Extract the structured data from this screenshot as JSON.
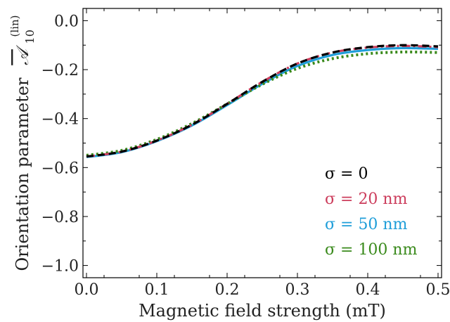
{
  "chart_data": {
    "type": "line",
    "xlabel": "Magnetic field strength (mT)",
    "ylabel": "Orientation parameter",
    "ylabel_symbol": "𝒜",
    "ylabel_sub": "10",
    "ylabel_sup": "(lin)",
    "xlim": [
      -0.005,
      0.505
    ],
    "ylim": [
      -1.05,
      0.05
    ],
    "xticks": [
      0.0,
      0.1,
      0.2,
      0.3,
      0.4,
      0.5
    ],
    "xtick_labels": [
      "0.0",
      "0.1",
      "0.2",
      "0.3",
      "0.4",
      "0.5"
    ],
    "yticks": [
      0.0,
      -0.2,
      -0.4,
      -0.6,
      -0.8,
      -1.0
    ],
    "ytick_labels": [
      "0.0",
      "−0.2",
      "−0.4",
      "−0.6",
      "−0.8",
      "−1.0"
    ],
    "grid": false,
    "legend_position": "bottom-right",
    "x": [
      0.0,
      0.05,
      0.1,
      0.15,
      0.2,
      0.25,
      0.3,
      0.35,
      0.4,
      0.45,
      0.5
    ],
    "series": [
      {
        "name": "σ = 0",
        "color": "#000000",
        "style": "dashed",
        "values": [
          -0.555,
          -0.535,
          -0.49,
          -0.425,
          -0.34,
          -0.25,
          -0.175,
          -0.13,
          -0.108,
          -0.1,
          -0.105
        ]
      },
      {
        "name": "σ = 20 nm",
        "color": "#cc3d5c",
        "style": "dashdot",
        "values": [
          -0.555,
          -0.535,
          -0.49,
          -0.425,
          -0.34,
          -0.25,
          -0.175,
          -0.13,
          -0.11,
          -0.103,
          -0.108
        ]
      },
      {
        "name": "σ = 50 nm",
        "color": "#1f9ed9",
        "style": "solid",
        "values": [
          -0.557,
          -0.537,
          -0.492,
          -0.428,
          -0.345,
          -0.258,
          -0.185,
          -0.14,
          -0.12,
          -0.112,
          -0.115
        ]
      },
      {
        "name": "σ = 100 nm",
        "color": "#3a8a1c",
        "style": "dotted",
        "values": [
          -0.55,
          -0.53,
          -0.485,
          -0.42,
          -0.34,
          -0.26,
          -0.195,
          -0.155,
          -0.135,
          -0.128,
          -0.13
        ]
      }
    ]
  }
}
